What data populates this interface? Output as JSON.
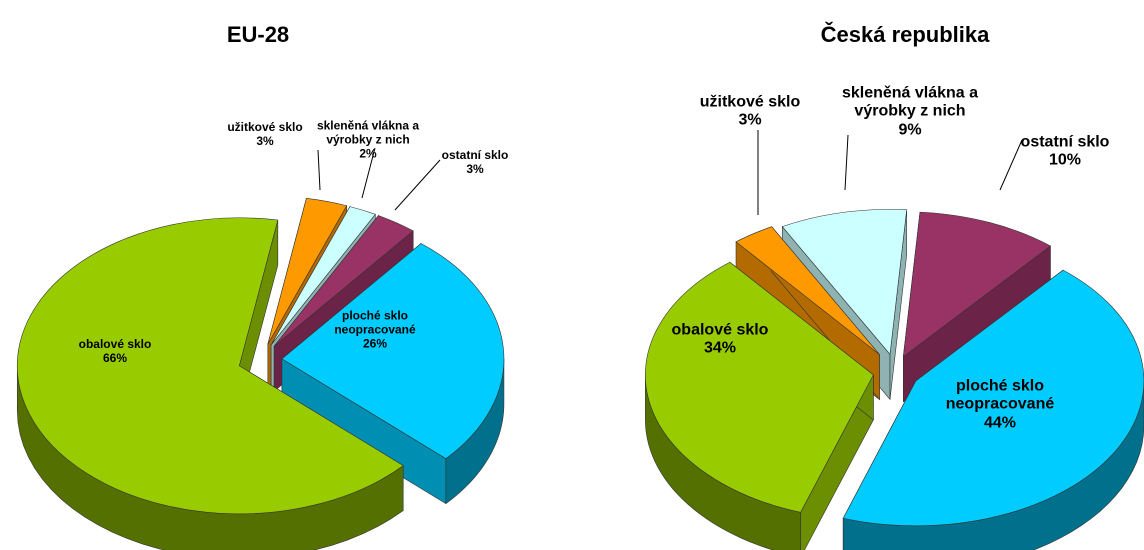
{
  "chart_data": [
    {
      "type": "pie",
      "title": "EU-28",
      "categories": [
        "užitkové sklo",
        "skleněná vlákna a výrobky z nich",
        "ostatní sklo",
        "ploché sklo neopracované",
        "obalové sklo"
      ],
      "values": [
        3,
        2,
        3,
        26,
        66
      ],
      "value_labels": [
        "3%",
        "2%",
        "3%",
        "26%",
        "66%"
      ],
      "colors": [
        "#ff9900",
        "#ccffff",
        "#993366",
        "#00ccff",
        "#99cc00"
      ]
    },
    {
      "type": "pie",
      "title": "Česká republika",
      "categories": [
        "užitkové sklo",
        "skleněná vlákna a výrobky z nich",
        "ostatní sklo",
        "ploché sklo neopracované",
        "obalové sklo"
      ],
      "values": [
        3,
        9,
        10,
        44,
        34
      ],
      "value_labels": [
        "3%",
        "9%",
        "10%",
        "44%",
        "34%"
      ],
      "colors": [
        "#ff9900",
        "#ccffff",
        "#993366",
        "#00ccff",
        "#99cc00"
      ]
    }
  ]
}
